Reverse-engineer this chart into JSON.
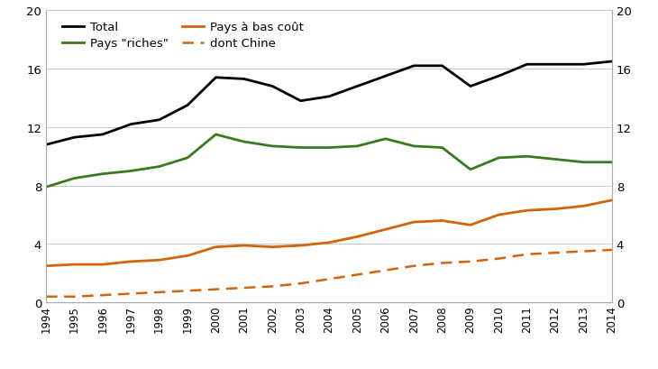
{
  "years": [
    1994,
    1995,
    1996,
    1997,
    1998,
    1999,
    2000,
    2001,
    2002,
    2003,
    2004,
    2005,
    2006,
    2007,
    2008,
    2009,
    2010,
    2011,
    2012,
    2013,
    2014
  ],
  "total": [
    10.8,
    11.3,
    11.5,
    12.2,
    12.5,
    13.5,
    15.4,
    15.3,
    14.8,
    13.8,
    14.1,
    14.8,
    15.5,
    16.2,
    16.2,
    14.8,
    15.5,
    16.3,
    16.3,
    16.3,
    16.5
  ],
  "pays_riches": [
    7.9,
    8.5,
    8.8,
    9.0,
    9.3,
    9.9,
    11.5,
    11.0,
    10.7,
    10.6,
    10.6,
    10.7,
    11.2,
    10.7,
    10.6,
    9.1,
    9.9,
    10.0,
    9.8,
    9.6,
    9.6
  ],
  "pays_bas_cout": [
    2.5,
    2.6,
    2.6,
    2.8,
    2.9,
    3.2,
    3.8,
    3.9,
    3.8,
    3.9,
    4.1,
    4.5,
    5.0,
    5.5,
    5.6,
    5.3,
    6.0,
    6.3,
    6.4,
    6.6,
    7.0
  ],
  "dont_chine": [
    0.4,
    0.4,
    0.5,
    0.6,
    0.7,
    0.8,
    0.9,
    1.0,
    1.1,
    1.3,
    1.6,
    1.9,
    2.2,
    2.5,
    2.7,
    2.8,
    3.0,
    3.3,
    3.4,
    3.5,
    3.6
  ],
  "color_total": "#000000",
  "color_pays_riches": "#3a7a1e",
  "color_pays_bas_cout": "#d4630a",
  "color_dont_chine": "#d4630a",
  "ylim": [
    0,
    20
  ],
  "yticks": [
    0,
    4,
    8,
    12,
    16,
    20
  ],
  "legend_total": "Total",
  "legend_pays_riches": "Pays \"riches\"",
  "legend_pays_bas_cout": "Pays à bas coût",
  "legend_dont_chine": "dont Chine",
  "bg_color": "#ffffff"
}
